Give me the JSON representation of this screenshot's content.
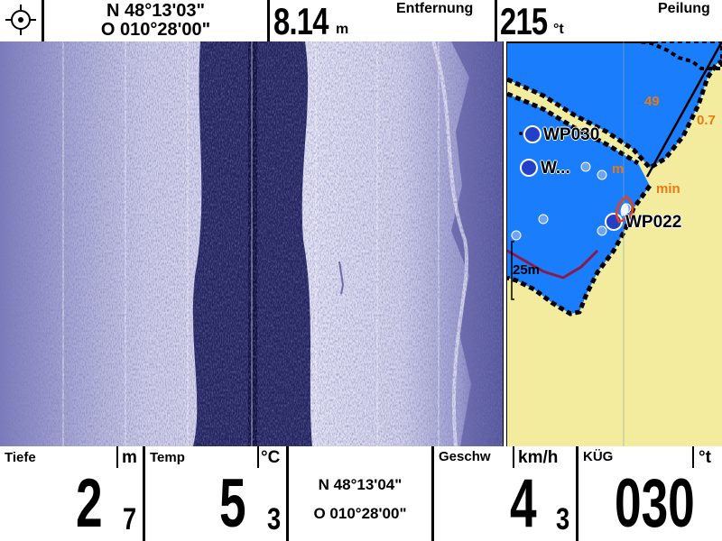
{
  "top_bar": {
    "gps_icon": "crosshair-target-icon",
    "coord_lat": "N 48°13'03\"",
    "coord_lon": "O 010°28'00\"",
    "distance_value": "8.14",
    "distance_unit": "m",
    "distance_label": "Entfernung",
    "bearing_value": "215",
    "bearing_unit": "°t",
    "bearing_label": "Peilung"
  },
  "map": {
    "waypoints": [
      "WP030",
      "W...",
      "WP022"
    ],
    "labels": {
      "l49": "49",
      "l07": "0.7",
      "lm": "m",
      "lmin": "min",
      "depth_scale": "25m"
    },
    "colors": {
      "water": "#1a7dfc",
      "land": "#f3ec9f",
      "track": "#8b1a4a",
      "label_orange": "#e87a12"
    }
  },
  "bottom_bar": {
    "depth": {
      "label": "Tiefe",
      "unit": "m",
      "int": "2",
      "dec": "7"
    },
    "temp": {
      "label": "Temp",
      "unit": "°C",
      "int": "5",
      "dec": "3"
    },
    "coord": {
      "lat": "N 48°13'04\"",
      "lon": "O 010°28'00\""
    },
    "speed": {
      "label": "Geschw",
      "unit": "km/h",
      "int": "4",
      "dec": "3"
    },
    "course": {
      "label": "KÜG",
      "unit": "°t",
      "value": "030"
    }
  }
}
